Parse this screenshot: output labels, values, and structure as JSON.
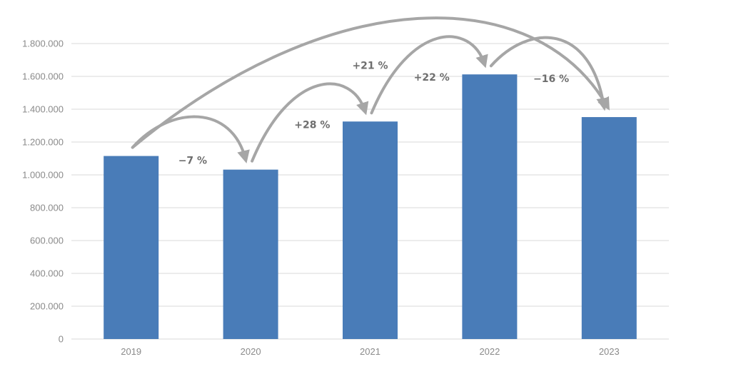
{
  "chart_data": {
    "type": "bar",
    "categories": [
      "2019",
      "2020",
      "2021",
      "2022",
      "2023"
    ],
    "values": [
      1115000,
      1032000,
      1325000,
      1612000,
      1352000
    ],
    "ylim": [
      0,
      1800000
    ],
    "yticks": [
      "0",
      "200.000",
      "400.000",
      "600.000",
      "800.000",
      "1.000.000",
      "1.200.000",
      "1.400.000",
      "1.600.000",
      "1.800.000"
    ],
    "grid": true,
    "colors": {
      "bar": "#497cb8",
      "grid": "#d9d9d9",
      "arrow": "#a6a6a6",
      "tick": "#8a8a8a",
      "annotation": "#6e6e6e"
    },
    "annotations": [
      {
        "from": "2019",
        "to": "2020",
        "label": "−7 %"
      },
      {
        "from": "2020",
        "to": "2021",
        "label": "+28 %"
      },
      {
        "from": "2021",
        "to": "2022",
        "label": "+22 %"
      },
      {
        "from": "2022",
        "to": "2023",
        "label": "−16 %"
      },
      {
        "from": "2019",
        "to": "2023",
        "label": "+21 %"
      }
    ]
  }
}
